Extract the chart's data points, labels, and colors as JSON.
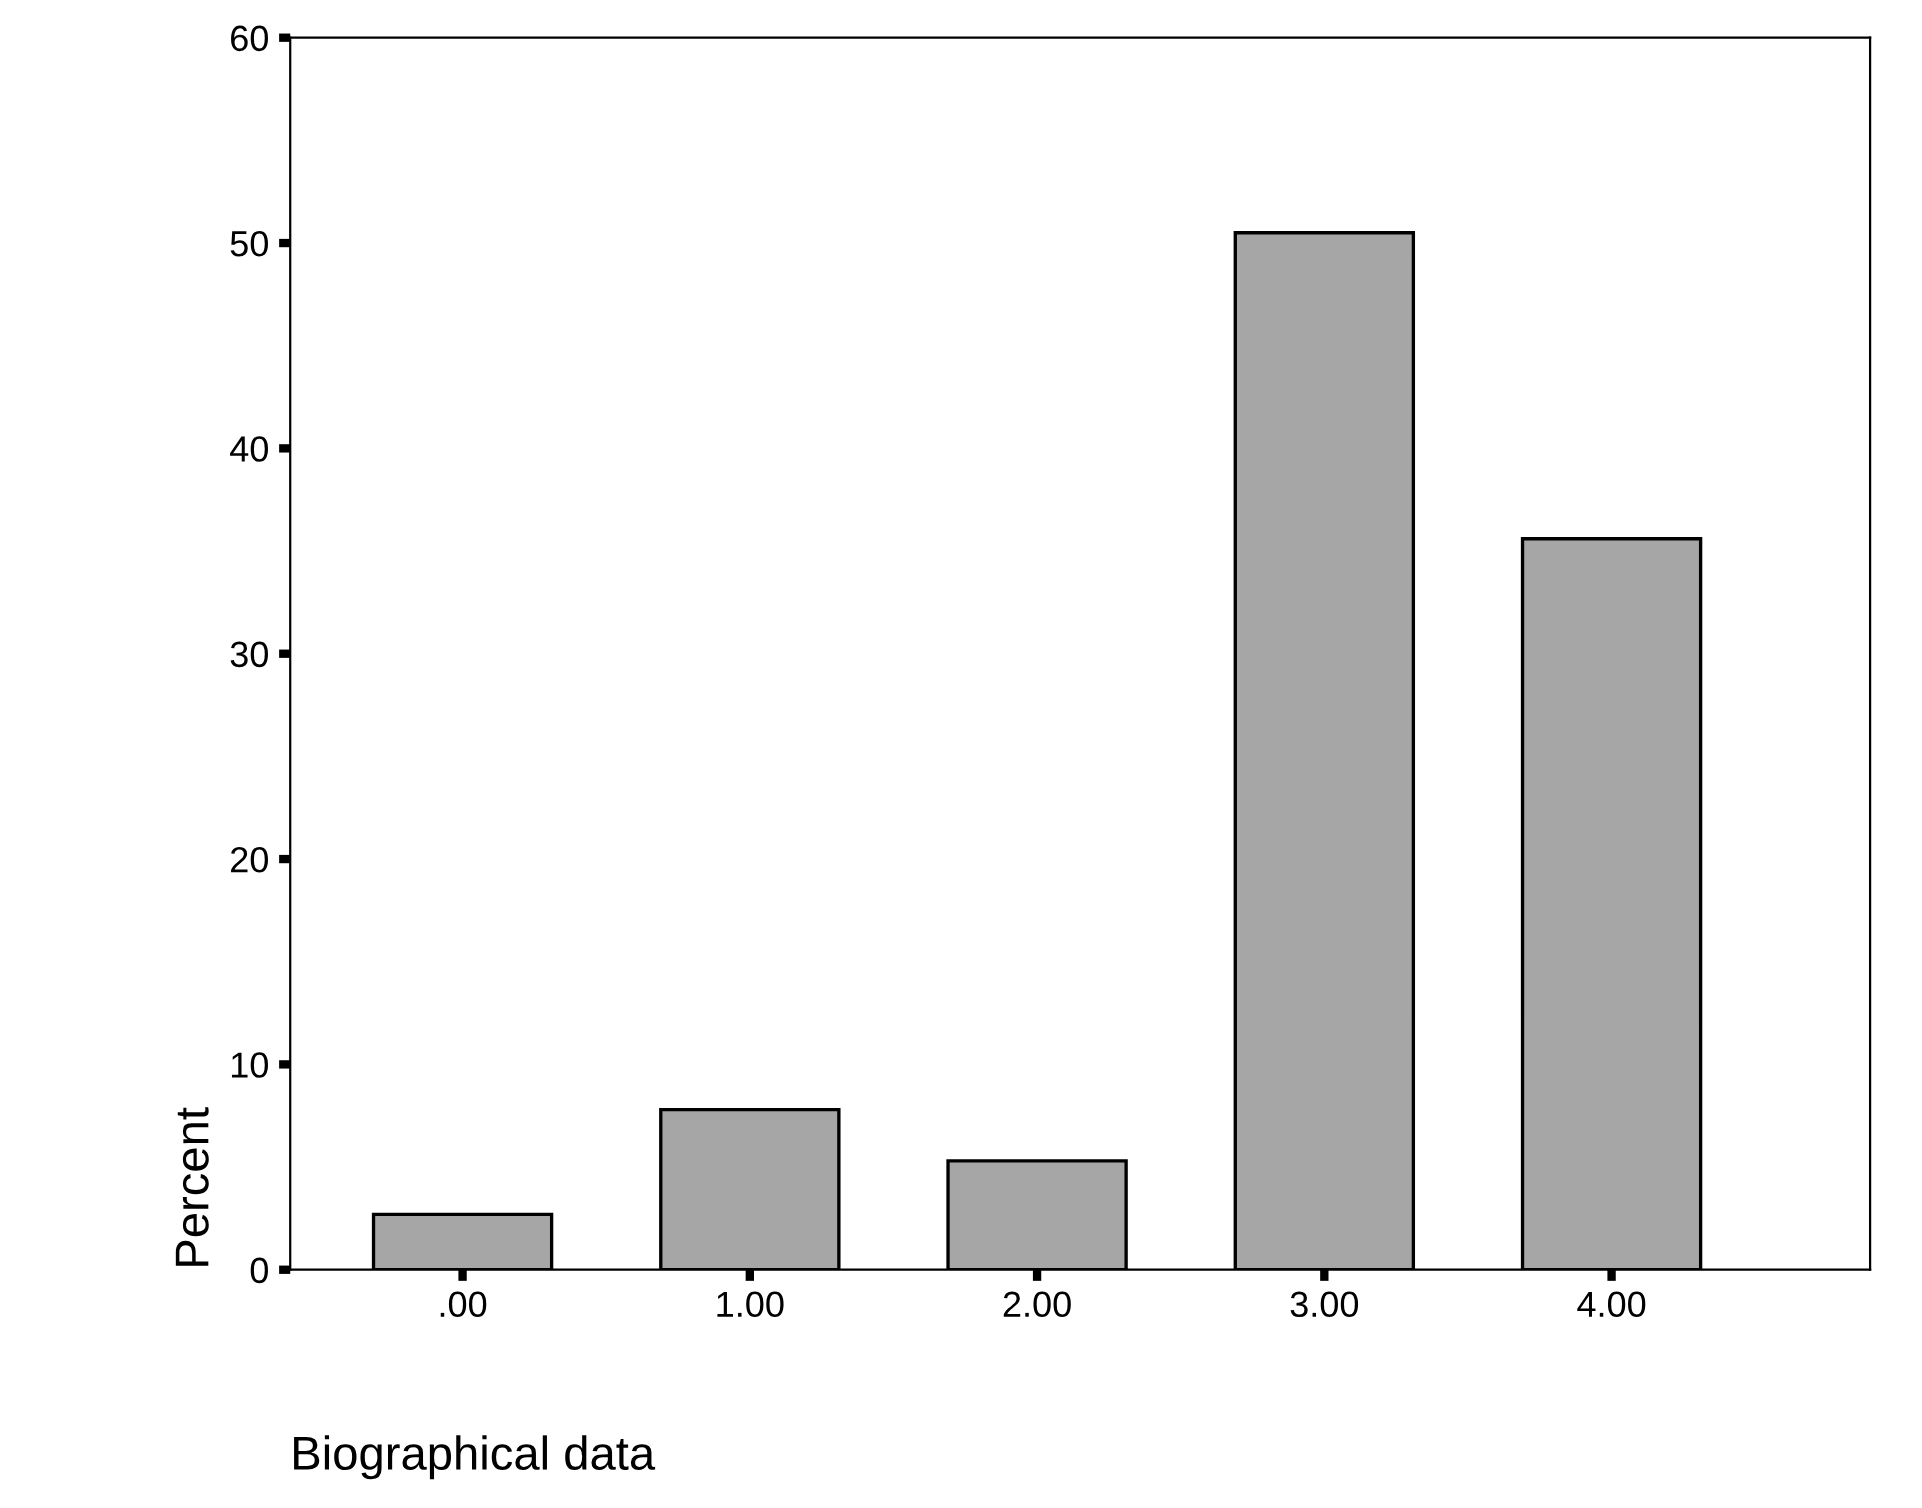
{
  "chart_data": {
    "type": "bar",
    "xlabel": "Biographical data",
    "ylabel": "Percent",
    "categories": [
      ".00",
      "1.00",
      "2.00",
      "3.00",
      "4.00"
    ],
    "values": [
      2.7,
      7.8,
      5.3,
      50.5,
      35.6
    ],
    "color": "#a6a6a6",
    "ylim": [
      0,
      60
    ],
    "yticks": [
      0,
      10,
      20,
      30,
      40,
      50,
      60
    ],
    "grid": false
  }
}
